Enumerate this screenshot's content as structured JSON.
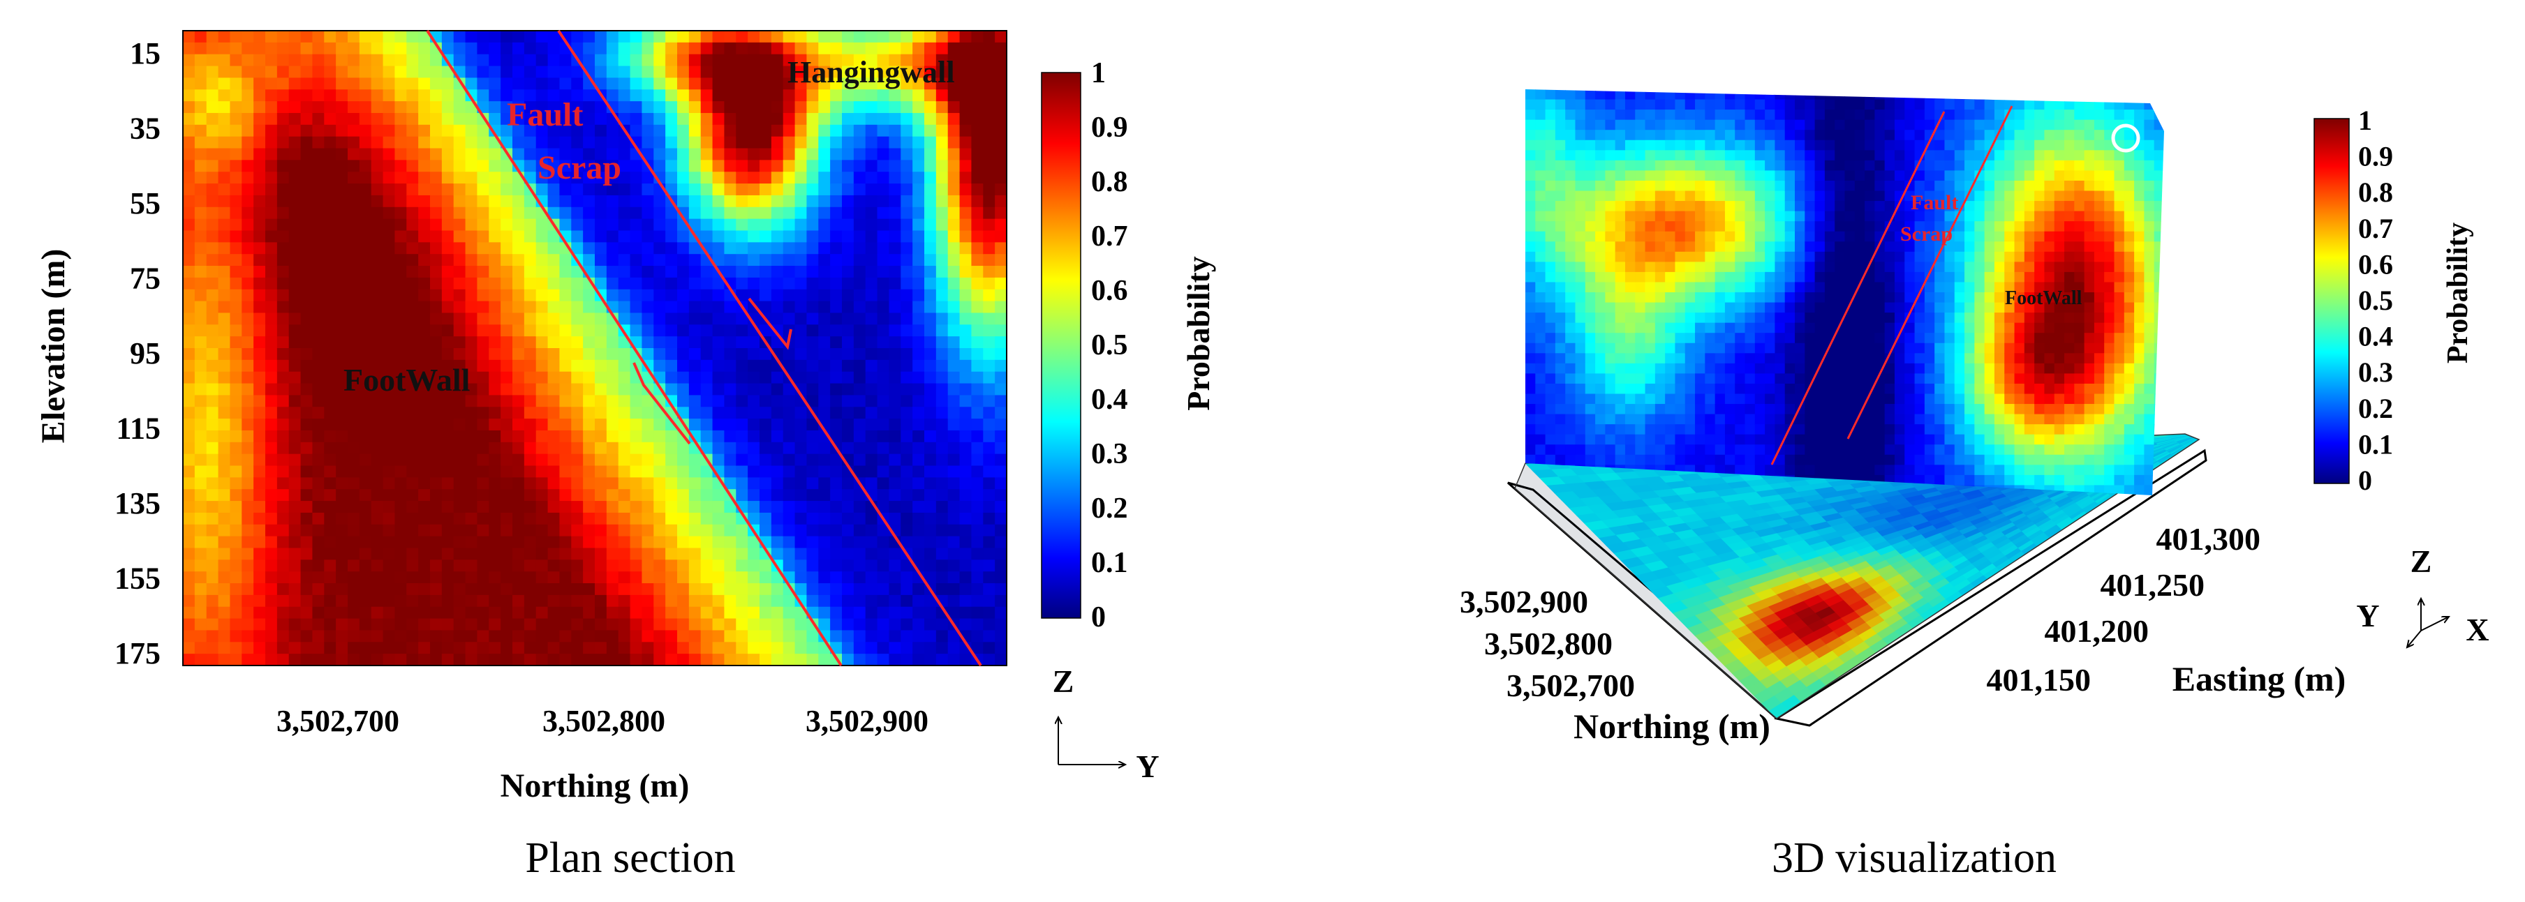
{
  "chart_data": [
    {
      "type": "heatmap",
      "caption": "Plan section",
      "xlabel": "Northing (m)",
      "ylabel": "Elevation (m)",
      "xticks": [
        "3,502,700",
        "3,502,800",
        "3,502,900"
      ],
      "yticks": [
        "15",
        "35",
        "55",
        "75",
        "95",
        "115",
        "135",
        "155",
        "175"
      ],
      "colorbar": {
        "label": "Probability",
        "range": [
          0,
          1
        ],
        "ticks": [
          "1",
          "0.9",
          "0.8",
          "0.7",
          "0.6",
          "0.5",
          "0.4",
          "0.3",
          "0.2",
          "0.1",
          "0"
        ]
      },
      "annotations": [
        "Fault",
        "Scrap",
        "Hangingwall",
        "FootWall"
      ],
      "axis_indicator": {
        "vertical": "Z",
        "horizontal": "Y"
      }
    },
    {
      "type": "heatmap",
      "caption": "3D visualization",
      "xlabel": "Easting (m)",
      "ylabel": "Northing (m)",
      "xticks": [
        "401,150",
        "401,200",
        "401,250",
        "401,300"
      ],
      "yticks": [
        "3,502,700",
        "3,502,800",
        "3,502,900"
      ],
      "colorbar": {
        "label": "Probability",
        "range": [
          0,
          1
        ],
        "ticks": [
          "1",
          "0.9",
          "0.8",
          "0.7",
          "0.6",
          "0.5",
          "0.4",
          "0.3",
          "0.2",
          "0.1",
          "0"
        ]
      },
      "annotations": [
        "Fault",
        "Scrap",
        "FootWall"
      ],
      "axis_indicator": {
        "vertical": "Z",
        "left": "Y",
        "right": "X"
      }
    }
  ],
  "colors": {
    "fault_line": "#ff2a2a",
    "annotation_text": "#e8242b",
    "jet_stops": [
      "#00007f",
      "#0000ff",
      "#00ffff",
      "#ffff00",
      "#ff0000",
      "#7f0000"
    ]
  }
}
